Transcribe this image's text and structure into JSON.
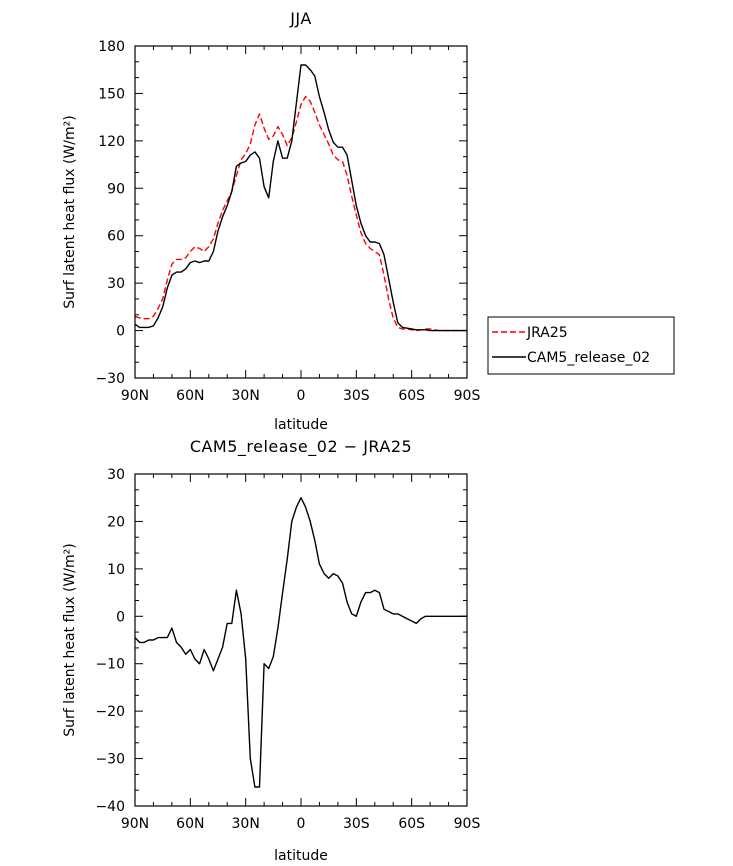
{
  "chart_data": [
    {
      "type": "line",
      "title": "JJA",
      "xlabel": "latitude",
      "ylabel": "Surf latent heat flux (W/m²)",
      "xlim": [
        90,
        -90
      ],
      "ylim": [
        -30,
        180
      ],
      "xticks": [
        90,
        60,
        30,
        0,
        -30,
        -60,
        -90
      ],
      "xtick_labels": [
        "90N",
        "60N",
        "30N",
        "0",
        "30S",
        "60S",
        "90S"
      ],
      "yticks": [
        -30,
        0,
        30,
        60,
        90,
        120,
        150,
        180
      ],
      "ytick_labels": [
        "−30",
        "0",
        "30",
        "60",
        "90",
        "120",
        "150",
        "180"
      ],
      "legend": "right",
      "x": [
        90,
        87.5,
        85,
        82.5,
        80,
        77.5,
        75,
        72.5,
        70,
        67.5,
        65,
        62.5,
        60,
        57.5,
        55,
        52.5,
        50,
        47.5,
        45,
        42.5,
        40,
        37.5,
        35,
        32.5,
        30,
        27.5,
        25,
        22.5,
        20,
        17.5,
        15,
        12.5,
        10,
        7.5,
        5,
        2.5,
        0,
        -2.5,
        -5,
        -7.5,
        -10,
        -12.5,
        -15,
        -17.5,
        -20,
        -22.5,
        -25,
        -27.5,
        -30,
        -32.5,
        -35,
        -37.5,
        -40,
        -42.5,
        -45,
        -47.5,
        -50,
        -52.5,
        -55,
        -57.5,
        -60,
        -62.5,
        -65,
        -67.5,
        -70,
        -72.5,
        -75,
        -77.5,
        -80,
        -82.5,
        -85,
        -87.5,
        -90
      ],
      "series": [
        {
          "name": "JRA25",
          "color": "#ff0000",
          "style": "dashed",
          "values": [
            9,
            8,
            7.5,
            7.5,
            9,
            14,
            20,
            32,
            42,
            45,
            45,
            46,
            50,
            53,
            52,
            50,
            53,
            58,
            68,
            76,
            82,
            88,
            98,
            108,
            112,
            118,
            130,
            137,
            128,
            121,
            123,
            129,
            124,
            117,
            122,
            132,
            143,
            148,
            145,
            138,
            130,
            124,
            118,
            111,
            108,
            107,
            98,
            85,
            73,
            62,
            55,
            52,
            50,
            48,
            35,
            20,
            8,
            2,
            1,
            1,
            0.5,
            0,
            0.5,
            1,
            1,
            0.5,
            0,
            0,
            0,
            0,
            0,
            0,
            0
          ]
        },
        {
          "name": "CAM5_release_02",
          "color": "#000000",
          "style": "solid",
          "values": [
            4,
            2,
            2,
            2,
            3,
            8,
            15,
            27,
            35,
            37,
            37,
            39,
            43,
            44,
            43,
            44,
            44,
            50,
            63,
            72,
            79,
            88,
            104,
            106,
            107,
            111,
            113,
            109,
            91,
            84,
            107,
            120,
            109,
            109,
            120,
            144,
            168,
            168,
            165,
            161,
            148,
            138,
            127,
            119,
            116,
            116,
            111,
            95,
            79,
            68,
            60,
            56,
            56,
            55,
            48,
            33,
            18,
            5,
            2,
            1.5,
            1,
            0.5,
            0.5,
            0.5,
            0,
            0,
            0,
            0,
            0,
            0,
            0,
            0,
            0
          ]
        }
      ]
    },
    {
      "type": "line",
      "title": "CAM5_release_02 − JRA25",
      "xlabel": "latitude",
      "ylabel": "Surf latent heat flux (W/m²)",
      "xlim": [
        90,
        -90
      ],
      "ylim": [
        -40,
        30
      ],
      "xticks": [
        90,
        60,
        30,
        0,
        -30,
        -60,
        -90
      ],
      "xtick_labels": [
        "90N",
        "60N",
        "30N",
        "0",
        "30S",
        "60S",
        "90S"
      ],
      "yticks": [
        -40,
        -30,
        -20,
        -10,
        0,
        10,
        20,
        30
      ],
      "ytick_labels": [
        "−40",
        "−30",
        "−20",
        "−10",
        "0",
        "10",
        "20",
        "30"
      ],
      "x": [
        90,
        87.5,
        85,
        82.5,
        80,
        77.5,
        75,
        72.5,
        70,
        67.5,
        65,
        62.5,
        60,
        57.5,
        55,
        52.5,
        50,
        47.5,
        45,
        42.5,
        40,
        37.5,
        35,
        32.5,
        30,
        27.5,
        25,
        22.5,
        20,
        17.5,
        15,
        12.5,
        10,
        7.5,
        5,
        2.5,
        0,
        -2.5,
        -5,
        -7.5,
        -10,
        -12.5,
        -15,
        -17.5,
        -20,
        -22.5,
        -25,
        -27.5,
        -30,
        -32.5,
        -35,
        -37.5,
        -40,
        -42.5,
        -45,
        -47.5,
        -50,
        -52.5,
        -55,
        -57.5,
        -60,
        -62.5,
        -65,
        -67.5,
        -70,
        -72.5,
        -75,
        -77.5,
        -80,
        -82.5,
        -85,
        -87.5,
        -90
      ],
      "series": [
        {
          "name": "CAM5_release_02 − JRA25",
          "color": "#000000",
          "style": "solid",
          "values": [
            -4.5,
            -5.5,
            -5.5,
            -5,
            -5,
            -4.5,
            -4.5,
            -4.5,
            -2.5,
            -5.5,
            -6.5,
            -8,
            -7,
            -9,
            -10,
            -7,
            -9,
            -11.5,
            -9,
            -6.5,
            -1.5,
            -1.5,
            5.5,
            0.5,
            -9,
            -30,
            -36,
            -36,
            -10,
            -11,
            -8.5,
            -2.5,
            5,
            12,
            20,
            23,
            25,
            23,
            20,
            16,
            11,
            9,
            8,
            9,
            8.5,
            7,
            3,
            0.5,
            0,
            3,
            5,
            5,
            5.5,
            5,
            1.5,
            1,
            0.5,
            0.5,
            0,
            -0.5,
            -1,
            -1.5,
            -0.5,
            0,
            0,
            0,
            0,
            0,
            0,
            0,
            0,
            0,
            0
          ]
        }
      ]
    }
  ]
}
